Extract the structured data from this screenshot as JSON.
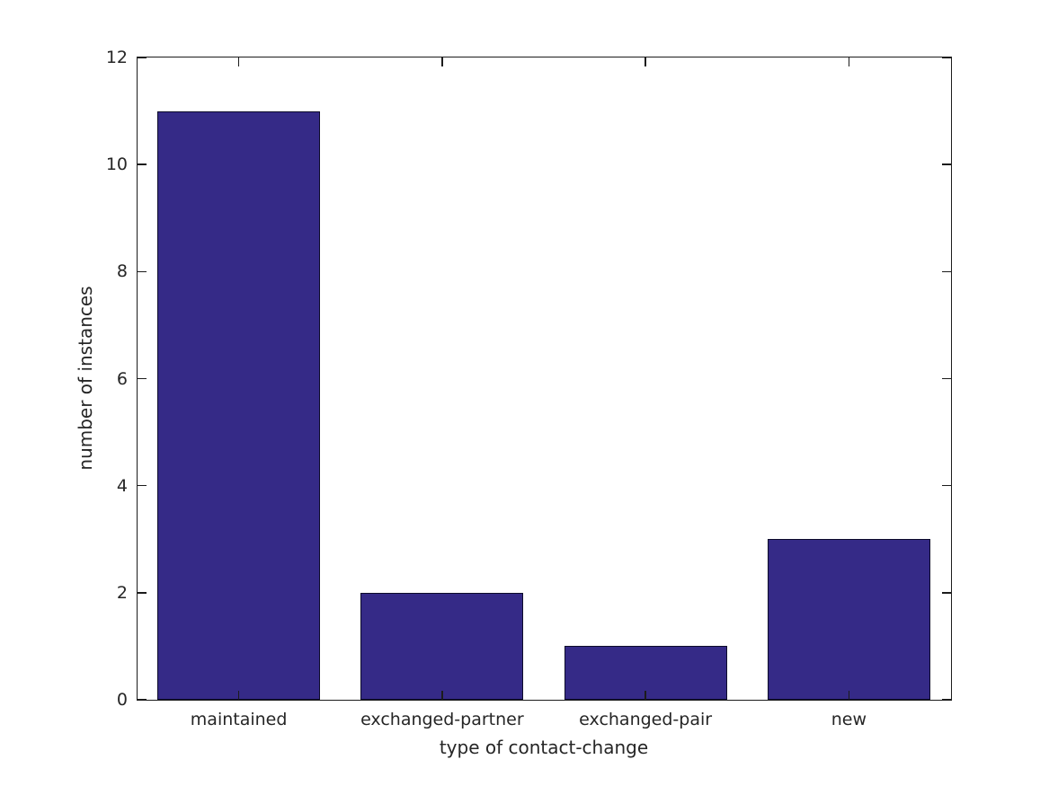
{
  "figure": {
    "background": "#ffffff"
  },
  "chart_data": {
    "type": "bar",
    "categories": [
      "maintained",
      "exchanged-partner",
      "exchanged-pair",
      "new"
    ],
    "values": [
      11,
      2,
      1,
      3
    ],
    "title": "",
    "xlabel": "type of contact-change",
    "ylabel": "number of instances",
    "ylim": [
      0,
      12
    ],
    "yticks": [
      0,
      2,
      4,
      6,
      8,
      10,
      12
    ],
    "bar_color": "#352a87",
    "bar_edge_color": "#0d0b2a",
    "axis_color": "#1c1c1c",
    "text_color": "#262626",
    "bar_width_fraction": 0.8,
    "grid": false,
    "legend": "none",
    "box": true,
    "tick_direction": "in"
  }
}
